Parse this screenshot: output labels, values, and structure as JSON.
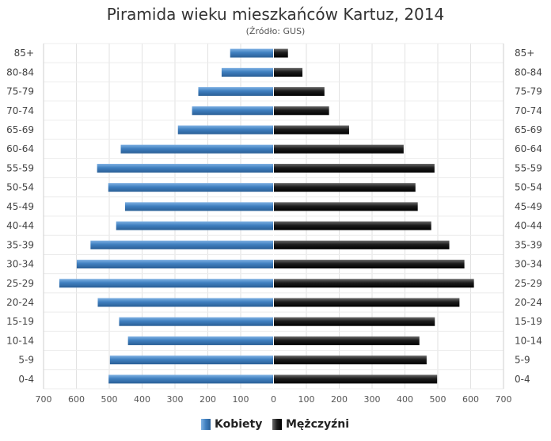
{
  "chart_data": {
    "type": "bar",
    "title": "Piramida wieku mieszkańców Kartuz, 2014",
    "subtitle": "(Źródło: GUS)",
    "categories": [
      "85+",
      "80-84",
      "75-79",
      "70-74",
      "65-69",
      "60-64",
      "55-59",
      "50-54",
      "45-49",
      "40-44",
      "35-39",
      "30-34",
      "25-29",
      "20-24",
      "15-19",
      "10-14",
      "5-9",
      "0-4"
    ],
    "series": [
      {
        "name": "Kobiety",
        "color": "#3f7fbf",
        "values": [
          132,
          158,
          229,
          248,
          291,
          465,
          537,
          503,
          452,
          479,
          557,
          599,
          652,
          535,
          470,
          443,
          498,
          502
        ]
      },
      {
        "name": "Mężczyźni",
        "color": "#1c1c1c",
        "values": [
          44,
          88,
          155,
          169,
          230,
          396,
          490,
          432,
          439,
          480,
          535,
          581,
          610,
          566,
          491,
          444,
          466,
          498
        ]
      }
    ],
    "xticks": [
      "700",
      "600",
      "500",
      "400",
      "300",
      "200",
      "100",
      "0",
      "100",
      "200",
      "300",
      "400",
      "500",
      "600",
      "700"
    ],
    "xlim": [
      -700,
      700
    ],
    "grid": true,
    "legend_position": "bottom-center"
  }
}
